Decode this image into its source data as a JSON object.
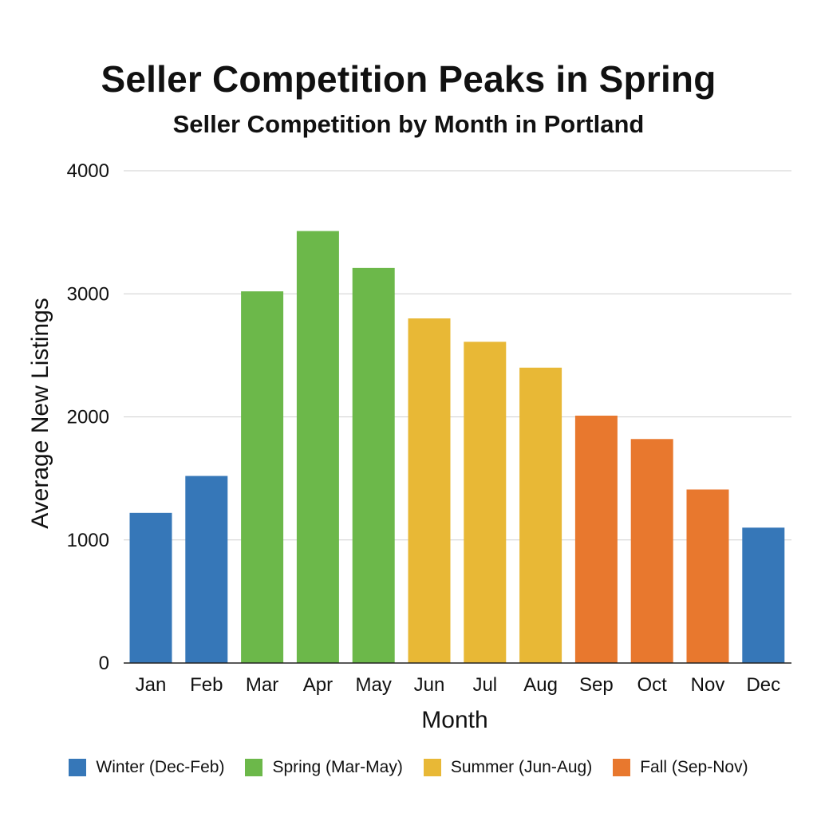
{
  "chart_data": {
    "type": "bar",
    "title": "Seller Competition Peaks in Spring",
    "subtitle": "Seller Competition by Month in Portland",
    "xlabel": "Month",
    "ylabel": "Average New Listings",
    "ylim": [
      0,
      4000
    ],
    "yticks": [
      0,
      1000,
      2000,
      3000,
      4000
    ],
    "grid": true,
    "legend_position": "bottom",
    "categories": [
      "Jan",
      "Feb",
      "Mar",
      "Apr",
      "May",
      "Jun",
      "Jul",
      "Aug",
      "Sep",
      "Oct",
      "Nov",
      "Dec"
    ],
    "values": [
      1220,
      1520,
      3020,
      3510,
      3210,
      2800,
      2610,
      2400,
      2010,
      1820,
      1410,
      1100
    ],
    "season_of_bar": [
      "winter",
      "winter",
      "spring",
      "spring",
      "spring",
      "summer",
      "summer",
      "summer",
      "fall",
      "fall",
      "fall",
      "winter"
    ],
    "legend": [
      {
        "key": "winter",
        "label": "Winter (Dec-Feb)",
        "color": "#3677B8"
      },
      {
        "key": "spring",
        "label": "Spring (Mar-May)",
        "color": "#6CB84A"
      },
      {
        "key": "summer",
        "label": "Summer (Jun-Aug)",
        "color": "#E8B836"
      },
      {
        "key": "fall",
        "label": "Fall (Sep-Nov)",
        "color": "#E8782E"
      }
    ]
  }
}
